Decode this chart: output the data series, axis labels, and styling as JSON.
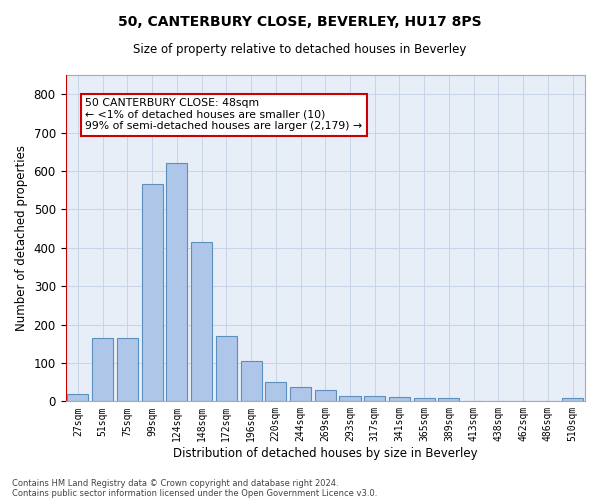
{
  "title": "50, CANTERBURY CLOSE, BEVERLEY, HU17 8PS",
  "subtitle": "Size of property relative to detached houses in Beverley",
  "xlabel": "Distribution of detached houses by size in Beverley",
  "ylabel": "Number of detached properties",
  "categories": [
    "27sqm",
    "51sqm",
    "75sqm",
    "99sqm",
    "124sqm",
    "148sqm",
    "172sqm",
    "196sqm",
    "220sqm",
    "244sqm",
    "269sqm",
    "293sqm",
    "317sqm",
    "341sqm",
    "365sqm",
    "389sqm",
    "413sqm",
    "438sqm",
    "462sqm",
    "486sqm",
    "510sqm"
  ],
  "values": [
    20,
    165,
    165,
    565,
    620,
    415,
    170,
    105,
    50,
    38,
    30,
    14,
    14,
    10,
    8,
    8,
    0,
    0,
    0,
    0,
    8
  ],
  "bar_color": "#aec6e8",
  "bar_edge_color": "#5a8fc0",
  "highlight_line_color": "#cc0000",
  "ylim": [
    0,
    850
  ],
  "yticks": [
    0,
    100,
    200,
    300,
    400,
    500,
    600,
    700,
    800
  ],
  "grid_color": "#c8d4e8",
  "background_color": "#e8eef8",
  "annotation_text": "50 CANTERBURY CLOSE: 48sqm\n← <1% of detached houses are smaller (10)\n99% of semi-detached houses are larger (2,179) →",
  "annotation_box_color": "#ffffff",
  "annotation_box_edge": "#cc0000",
  "footnote1": "Contains HM Land Registry data © Crown copyright and database right 2024.",
  "footnote2": "Contains public sector information licensed under the Open Government Licence v3.0."
}
